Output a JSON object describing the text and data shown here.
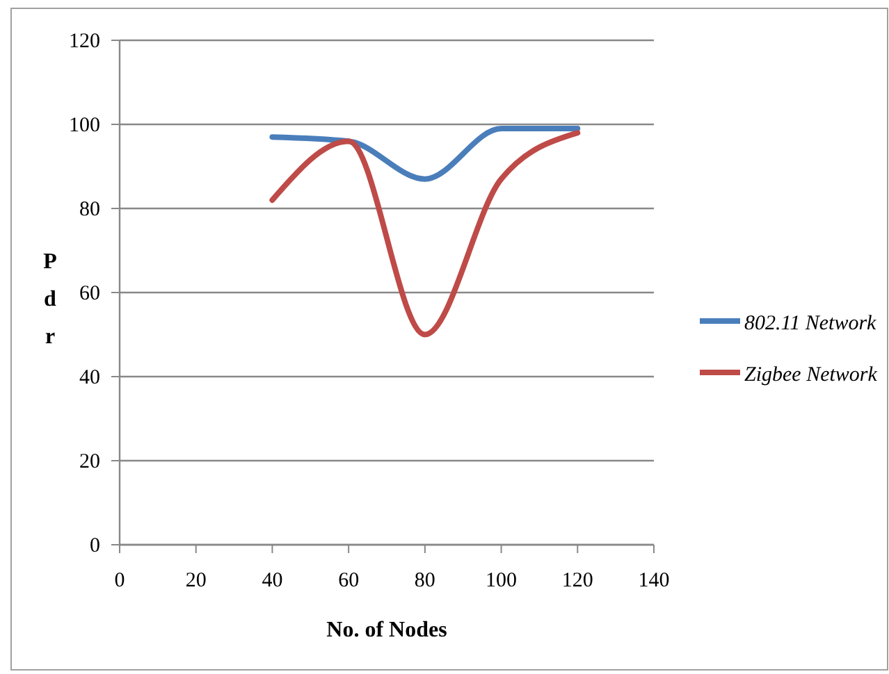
{
  "chart_data": {
    "type": "line",
    "xlabel": "No. of Nodes",
    "ylabel": "Pdr",
    "x": [
      40,
      60,
      80,
      100,
      120
    ],
    "series": [
      {
        "name": "802.11 Network",
        "color": "#4a7ebb",
        "values": [
          97,
          96,
          87,
          99,
          99
        ]
      },
      {
        "name": "Zigbee Network",
        "color": "#be4b48",
        "values": [
          82,
          96,
          50,
          87,
          98
        ]
      }
    ],
    "xlim": [
      0,
      140
    ],
    "xticks": [
      0,
      20,
      40,
      60,
      80,
      100,
      120,
      140
    ],
    "ylim": [
      0,
      120
    ],
    "yticks": [
      0,
      20,
      40,
      60,
      80,
      100,
      120
    ],
    "grid": "y",
    "legend": "right",
    "marker": "none",
    "line_style": "solid"
  }
}
